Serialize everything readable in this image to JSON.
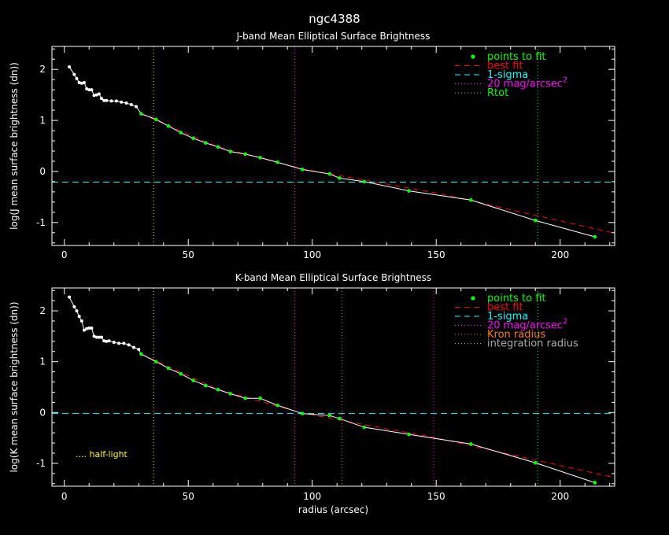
{
  "figure_title": "ngc4388",
  "half_light_label": ".... half-light",
  "colors": {
    "background": "#000000",
    "axes": "#ffffff",
    "points": "#00ff00",
    "data_line": "#ffffff",
    "best_fit": "#ff0000",
    "sigma": "#00ffff",
    "mag20": "#ff00ff",
    "rtot": "#00ff00",
    "kron": "#ff8000",
    "integration": "#aaaaaa",
    "half_light": "#ffff00"
  },
  "chart_data": [
    {
      "type": "line",
      "title": "J-band Mean Elliptical Surface Brightness",
      "xlabel": "",
      "ylabel": "log(J mean surface brightness (dn))",
      "xlim": [
        -5,
        222
      ],
      "ylim": [
        -1.45,
        2.45
      ],
      "xticks": [
        0,
        50,
        100,
        150,
        200
      ],
      "yticks": [
        -1,
        0,
        1,
        2
      ],
      "white_points": [
        [
          2,
          2.05
        ],
        [
          4,
          1.9
        ],
        [
          5,
          1.82
        ],
        [
          6,
          1.74
        ],
        [
          7,
          1.73
        ],
        [
          8,
          1.74
        ],
        [
          9,
          1.62
        ],
        [
          10,
          1.6
        ],
        [
          11,
          1.6
        ],
        [
          12,
          1.49
        ],
        [
          13,
          1.5
        ],
        [
          14,
          1.52
        ],
        [
          15,
          1.43
        ],
        [
          16,
          1.39
        ],
        [
          17,
          1.39
        ],
        [
          19,
          1.38
        ],
        [
          21,
          1.38
        ],
        [
          23,
          1.36
        ],
        [
          25,
          1.34
        ],
        [
          27,
          1.31
        ],
        [
          29,
          1.27
        ]
      ],
      "fit_points": [
        [
          31,
          1.13
        ],
        [
          37,
          1.02
        ],
        [
          42,
          0.89
        ],
        [
          47,
          0.76
        ],
        [
          52,
          0.65
        ],
        [
          57,
          0.56
        ],
        [
          62,
          0.48
        ],
        [
          67,
          0.39
        ],
        [
          73,
          0.34
        ],
        [
          79,
          0.27
        ],
        [
          86,
          0.18
        ],
        [
          96,
          0.04
        ],
        [
          107,
          -0.05
        ],
        [
          111,
          -0.13
        ],
        [
          121,
          -0.2
        ],
        [
          139,
          -0.38
        ],
        [
          164,
          -0.56
        ],
        [
          190,
          -0.96
        ],
        [
          214,
          -1.28
        ]
      ],
      "best_fit_line": [
        [
          31,
          1.13
        ],
        [
          62,
          0.48
        ],
        [
          96,
          0.05
        ],
        [
          150,
          -0.42
        ],
        [
          222,
          -1.21
        ]
      ],
      "hlines": [
        {
          "y": -0.21,
          "style": "dashed",
          "color": "sigma"
        }
      ],
      "vlines": [
        {
          "x": 36,
          "style": "dotted",
          "color": "half_light"
        },
        {
          "x": 93,
          "style": "dotted",
          "color": "mag20"
        },
        {
          "x": 191,
          "style": "dotted",
          "color": "rtot"
        }
      ],
      "legend_position": "top-right",
      "legend": [
        {
          "label": "points to fit",
          "kind": "dot",
          "color": "points"
        },
        {
          "label": "best fit",
          "kind": "dashed",
          "color": "best_fit"
        },
        {
          "label": "1-sigma",
          "kind": "dashed",
          "color": "sigma"
        },
        {
          "label": "20 mag/arcsec",
          "sup": "2",
          "kind": "dotted",
          "color": "mag20"
        },
        {
          "label": "Rtot",
          "kind": "dotted",
          "color": "rtot"
        }
      ]
    },
    {
      "type": "line",
      "title": "K-band Mean Elliptical Surface Brightness",
      "xlabel": "radius (arcsec)",
      "ylabel": "log(K mean surface brightness (dn))",
      "xlim": [
        -5,
        222
      ],
      "ylim": [
        -1.45,
        2.45
      ],
      "xticks": [
        0,
        50,
        100,
        150,
        200
      ],
      "yticks": [
        -1,
        0,
        1,
        2
      ],
      "white_points": [
        [
          2,
          2.27
        ],
        [
          4,
          2.08
        ],
        [
          5,
          2.0
        ],
        [
          6,
          1.89
        ],
        [
          7,
          1.8
        ],
        [
          8,
          1.62
        ],
        [
          9,
          1.65
        ],
        [
          10,
          1.66
        ],
        [
          11,
          1.66
        ],
        [
          12,
          1.5
        ],
        [
          13,
          1.48
        ],
        [
          14,
          1.48
        ],
        [
          15,
          1.48
        ],
        [
          16,
          1.41
        ],
        [
          17,
          1.4
        ],
        [
          18,
          1.41
        ],
        [
          20,
          1.38
        ],
        [
          22,
          1.36
        ],
        [
          24,
          1.36
        ],
        [
          26,
          1.33
        ],
        [
          28,
          1.28
        ],
        [
          30,
          1.24
        ]
      ],
      "fit_points": [
        [
          31,
          1.15
        ],
        [
          37,
          1.0
        ],
        [
          42,
          0.87
        ],
        [
          47,
          0.76
        ],
        [
          52,
          0.63
        ],
        [
          57,
          0.53
        ],
        [
          62,
          0.45
        ],
        [
          67,
          0.37
        ],
        [
          73,
          0.28
        ],
        [
          79,
          0.28
        ],
        [
          86,
          0.14
        ],
        [
          96,
          -0.02
        ],
        [
          107,
          -0.06
        ],
        [
          111,
          -0.12
        ],
        [
          121,
          -0.29
        ],
        [
          139,
          -0.43
        ],
        [
          164,
          -0.62
        ],
        [
          190,
          -0.99
        ],
        [
          214,
          -1.38
        ]
      ],
      "best_fit_line": [
        [
          31,
          1.15
        ],
        [
          62,
          0.45
        ],
        [
          96,
          -0.01
        ],
        [
          150,
          -0.5
        ],
        [
          222,
          -1.28
        ]
      ],
      "hlines": [
        {
          "y": -0.02,
          "style": "dashed",
          "color": "sigma"
        }
      ],
      "vlines": [
        {
          "x": 36,
          "style": "dotted",
          "color": "half_light"
        },
        {
          "x": 93,
          "style": "dotted",
          "color": "mag20"
        },
        {
          "x": 112,
          "style": "dotted",
          "color": "kron"
        },
        {
          "x": 149,
          "style": "dotted",
          "color": "mag20"
        },
        {
          "x": 191,
          "style": "dotted",
          "color": "rtot"
        }
      ],
      "legend_position": "top-right",
      "legend": [
        {
          "label": "points to fit",
          "kind": "dot",
          "color": "points"
        },
        {
          "label": "best fit",
          "kind": "dashed",
          "color": "best_fit"
        },
        {
          "label": "1-sigma",
          "kind": "dashed",
          "color": "sigma"
        },
        {
          "label": "20 mag/arcsec",
          "sup": "2",
          "kind": "dotted",
          "color": "mag20"
        },
        {
          "label": "Kron radius",
          "kind": "dotted",
          "color": "kron"
        },
        {
          "label": "integration radius",
          "kind": "dotted",
          "color": "integration"
        }
      ]
    }
  ]
}
